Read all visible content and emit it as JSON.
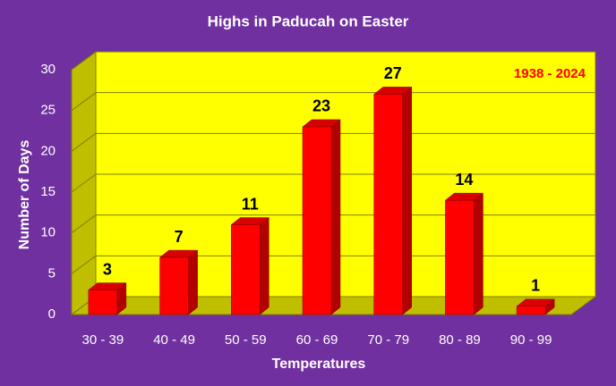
{
  "chart_data": {
    "type": "bar",
    "title": "Highs in Paducah on Easter",
    "annotation": "1938 - 2024",
    "xlabel": "Temperatures",
    "ylabel": "Number of Days",
    "categories": [
      "30 - 39",
      "40 - 49",
      "50 - 59",
      "60 - 69",
      "70 - 79",
      "80 - 89",
      "90 - 99"
    ],
    "values": [
      3,
      7,
      11,
      23,
      27,
      14,
      1
    ],
    "color": "#ff0000",
    "ylim": [
      0,
      30
    ],
    "yticks": [
      0,
      5,
      10,
      15,
      20,
      25,
      30
    ],
    "grid": true
  }
}
